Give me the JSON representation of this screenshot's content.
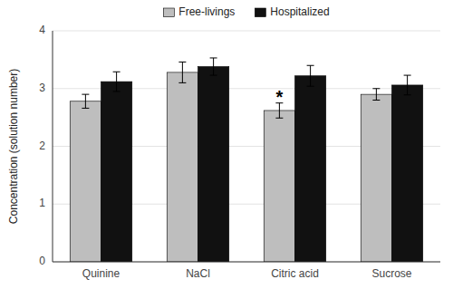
{
  "chart_data": {
    "type": "bar",
    "categories": [
      "Quinine",
      "NaCl",
      "Citric acid",
      "Sucrose"
    ],
    "series": [
      {
        "name": "Free-livings",
        "color": "#bebebe",
        "values": [
          2.78,
          3.28,
          2.62,
          2.9
        ],
        "errors": [
          0.12,
          0.18,
          0.13,
          0.1
        ]
      },
      {
        "name": "Hospitalized",
        "color": "#111111",
        "values": [
          3.12,
          3.38,
          3.22,
          3.06
        ],
        "errors": [
          0.17,
          0.15,
          0.18,
          0.17
        ]
      }
    ],
    "y_label": "Concentration (solution number)",
    "ylim": [
      0,
      4
    ],
    "yticks": [
      0,
      1,
      2,
      3,
      4
    ],
    "grid": true,
    "legend": "top",
    "annotations": [
      {
        "text": "*",
        "category": "Citric acid",
        "series": "Free-livings"
      }
    ]
  }
}
